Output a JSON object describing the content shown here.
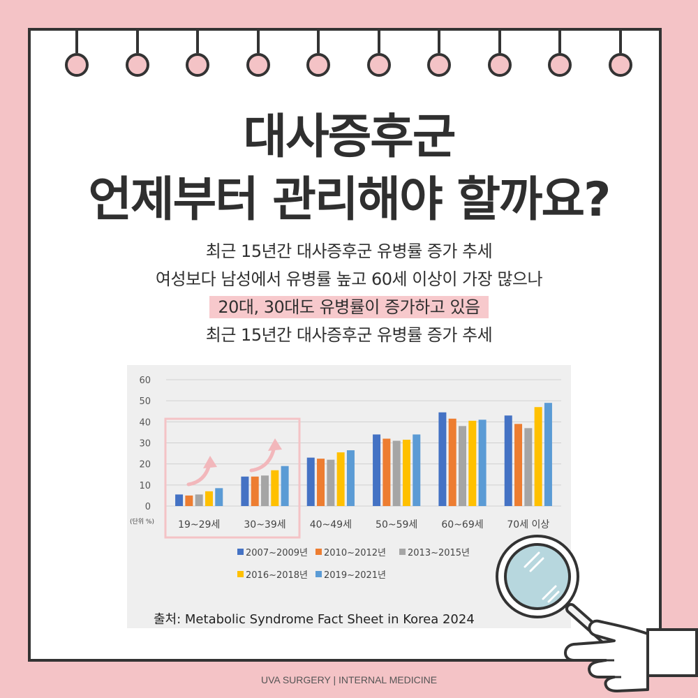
{
  "title": {
    "line1": "대사증후군",
    "line2": "언제부터 관리해야 할까요?"
  },
  "subtitle": {
    "line1": "최근 15년간 대사증후군 유병률 증가 추세",
    "line2": "여성보다 남성에서 유병률 높고 60세 이상이 가장 많으나",
    "line3": "20대, 30대도 유병률이 증가하고 있음",
    "line4": "최근 15년간 대사증후군 유병률 증가 추세"
  },
  "chart_data": {
    "type": "bar",
    "categories": [
      "19~29세",
      "30~39세",
      "40~49세",
      "50~59세",
      "60~69세",
      "70세  이상"
    ],
    "series": [
      {
        "name": "2007~2009년",
        "values": [
          5.5,
          14,
          23,
          34,
          44.5,
          43
        ]
      },
      {
        "name": "2010~2012년",
        "values": [
          5,
          14,
          22.5,
          32,
          41.5,
          39
        ]
      },
      {
        "name": "2013~2015년",
        "values": [
          5.5,
          14.5,
          22,
          31,
          38,
          37
        ]
      },
      {
        "name": "2016~2018년",
        "values": [
          7,
          17,
          25.5,
          31.5,
          40.5,
          47
        ]
      },
      {
        "name": "2019~2021년",
        "values": [
          8.5,
          19,
          26.5,
          34,
          41,
          49
        ]
      }
    ],
    "series_colors": [
      "#4472c4",
      "#ed7d31",
      "#a5a5a5",
      "#ffc000",
      "#5b9bd5"
    ],
    "yticks": [
      "0",
      "10",
      "20",
      "30",
      "40",
      "50",
      "60"
    ],
    "ylim": [
      0,
      60
    ],
    "unit_label": "(단위 %)",
    "grid": true,
    "legend_position": "bottom",
    "highlight_color": "#f4c3c6"
  },
  "source": "출처: Metabolic Syndrome Fact Sheet in Korea 2024",
  "footer": "UVA SURGERY | INTERNAL MEDICINE",
  "icons": {
    "magnifier": "magnifying-glass-icon",
    "hand": "pointing-hand-icon",
    "arrow": "curved-up-arrow-icon"
  }
}
